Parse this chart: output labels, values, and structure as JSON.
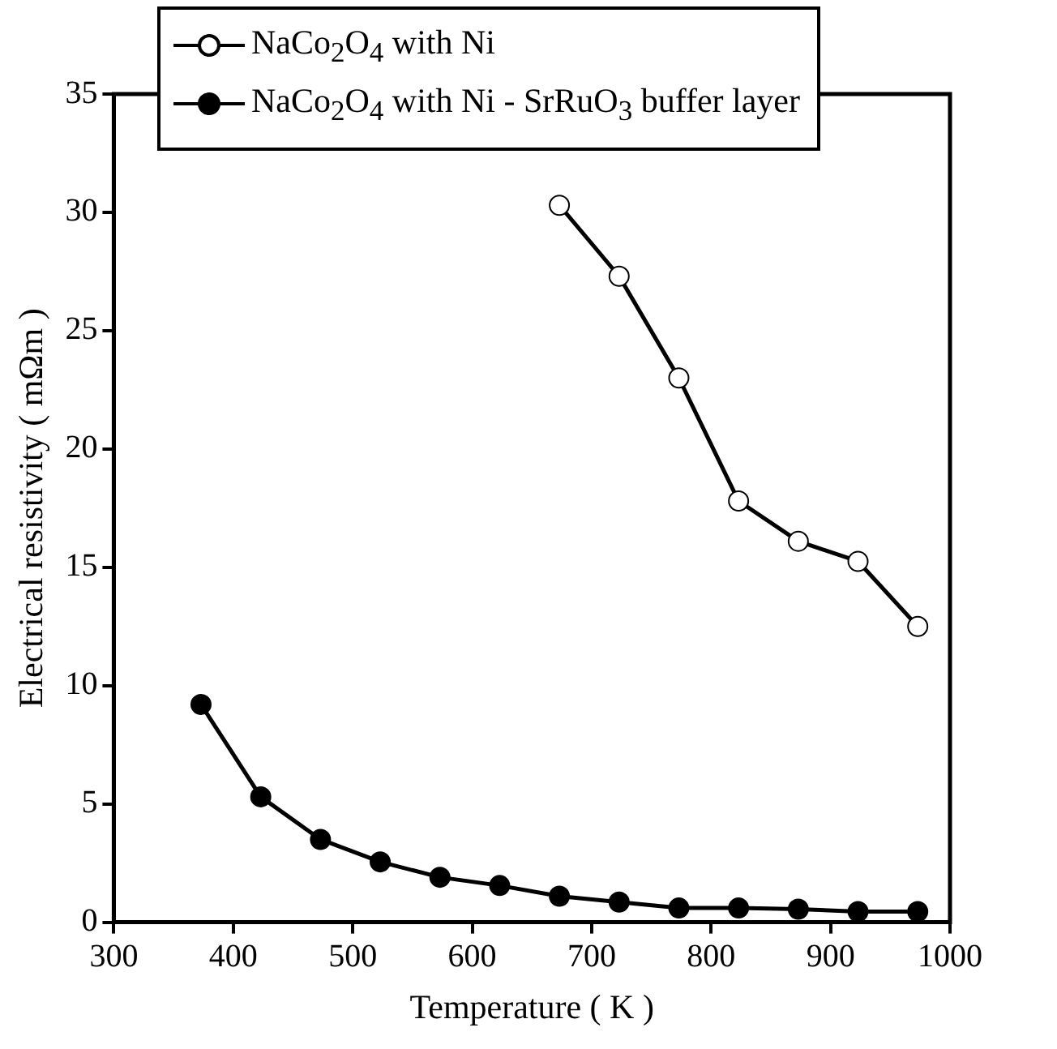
{
  "chart_data": {
    "type": "line",
    "xlabel": "Temperature ( K )",
    "ylabel": "Electrical resistivity ( mΩm )",
    "xlim": [
      300,
      1000
    ],
    "xticks": [
      300,
      400,
      500,
      600,
      700,
      800,
      900,
      1000
    ],
    "ylim": [
      0,
      35
    ],
    "yticks": [
      0,
      5,
      10,
      15,
      20,
      25,
      30,
      35
    ],
    "grid": false,
    "legend": "top left",
    "marker": "circle",
    "line_style": "solid",
    "series": [
      {
        "name": "NaCo$_{2}$O$_{4}$ with Ni",
        "color": "#000000",
        "x": [
          673,
          723,
          773,
          823,
          873,
          923,
          973
        ],
        "values": [
          30.3,
          27.3,
          23.0,
          17.8,
          16.1,
          15.25,
          12.5
        ]
      },
      {
        "name": "NaCo$_{2}$O$_{4}$ with Ni - SrRuO$_{3}$ buffer layer",
        "color": "#000000",
        "x": [
          373,
          423,
          473,
          523,
          573,
          623,
          673,
          723,
          773,
          823,
          873,
          923,
          973
        ],
        "values": [
          9.2,
          5.3,
          3.5,
          2.55,
          1.9,
          1.55,
          1.1,
          0.85,
          0.6,
          0.6,
          0.55,
          0.45,
          0.45
        ]
      }
    ]
  }
}
